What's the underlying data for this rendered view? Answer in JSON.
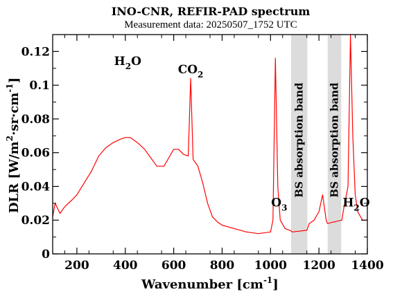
{
  "chart_data": {
    "type": "line",
    "title": "INO-CNR, REFIR-PAD spectrum",
    "subtitle": "Measurement data: 20250507_1752 UTC",
    "xlabel": "Wavenumber [cm",
    "xlabel_sup": "-1",
    "xlabel_end": "]",
    "ylabel": "DLR [W/m",
    "ylabel_sup": "2",
    "ylabel_mid": "·sr·cm",
    "ylabel_sup2": "-1",
    "ylabel_end": "]",
    "xlim": [
      100,
      1400
    ],
    "ylim": [
      0,
      0.13
    ],
    "x_ticks": [
      200,
      400,
      600,
      800,
      1000,
      1200,
      1400
    ],
    "y_ticks": [
      0,
      0.02,
      0.04,
      0.06,
      0.08,
      0.1,
      0.12
    ],
    "x_tick_labels": [
      "200",
      "400",
      "600",
      "800",
      "1000",
      "1200",
      "1400"
    ],
    "y_tick_labels": [
      "0",
      "0.02",
      "0.04",
      "0.06",
      "0.08",
      "0.1",
      "0.12"
    ],
    "series_color": "#ff0000",
    "shade_color": "#dcdcdc",
    "series": [
      {
        "x": [
          100,
          110,
          130,
          150,
          180,
          200,
          230,
          260,
          290,
          320,
          350,
          380,
          400,
          420,
          450,
          480,
          500,
          530,
          560,
          580,
          600,
          620,
          640,
          660,
          670,
          680,
          700,
          720,
          740,
          760,
          780,
          800,
          850,
          900,
          950,
          1000,
          1010,
          1020,
          1030,
          1040,
          1060,
          1080,
          1090,
          1150,
          1160,
          1180,
          1200,
          1215,
          1230,
          1235,
          1295,
          1300,
          1320,
          1330,
          1340,
          1350,
          1360,
          1380,
          1400
        ],
        "y": [
          0.022,
          0.03,
          0.024,
          0.028,
          0.032,
          0.035,
          0.042,
          0.049,
          0.058,
          0.063,
          0.066,
          0.068,
          0.069,
          0.069,
          0.066,
          0.062,
          0.058,
          0.052,
          0.052,
          0.057,
          0.062,
          0.062,
          0.059,
          0.058,
          0.104,
          0.056,
          0.052,
          0.042,
          0.03,
          0.022,
          0.019,
          0.017,
          0.015,
          0.013,
          0.012,
          0.013,
          0.02,
          0.116,
          0.04,
          0.02,
          0.015,
          0.014,
          0.013,
          0.014,
          0.018,
          0.02,
          0.025,
          0.035,
          0.02,
          0.018,
          0.02,
          0.025,
          0.04,
          0.13,
          0.07,
          0.035,
          0.025,
          0.02,
          0.02
        ]
      }
    ],
    "shaded_regions": [
      {
        "x": [
          1085,
          1152
        ],
        "label": "BS absorption band"
      },
      {
        "x": [
          1236,
          1292
        ],
        "label": "BS absorption band"
      }
    ],
    "annotations": [
      {
        "text": "H",
        "sub": "2",
        "text_end": "O",
        "x": 410,
        "y": 0.112
      },
      {
        "text": "CO",
        "sub": "2",
        "text_end": "",
        "x": 670,
        "y": 0.107
      },
      {
        "text": "O",
        "sub": "3",
        "text_end": "",
        "x": 1036,
        "y": 0.028
      },
      {
        "text": "H",
        "sub": "2",
        "text_end": "O",
        "x": 1354,
        "y": 0.028
      }
    ],
    "grid": false,
    "legend": "none"
  }
}
